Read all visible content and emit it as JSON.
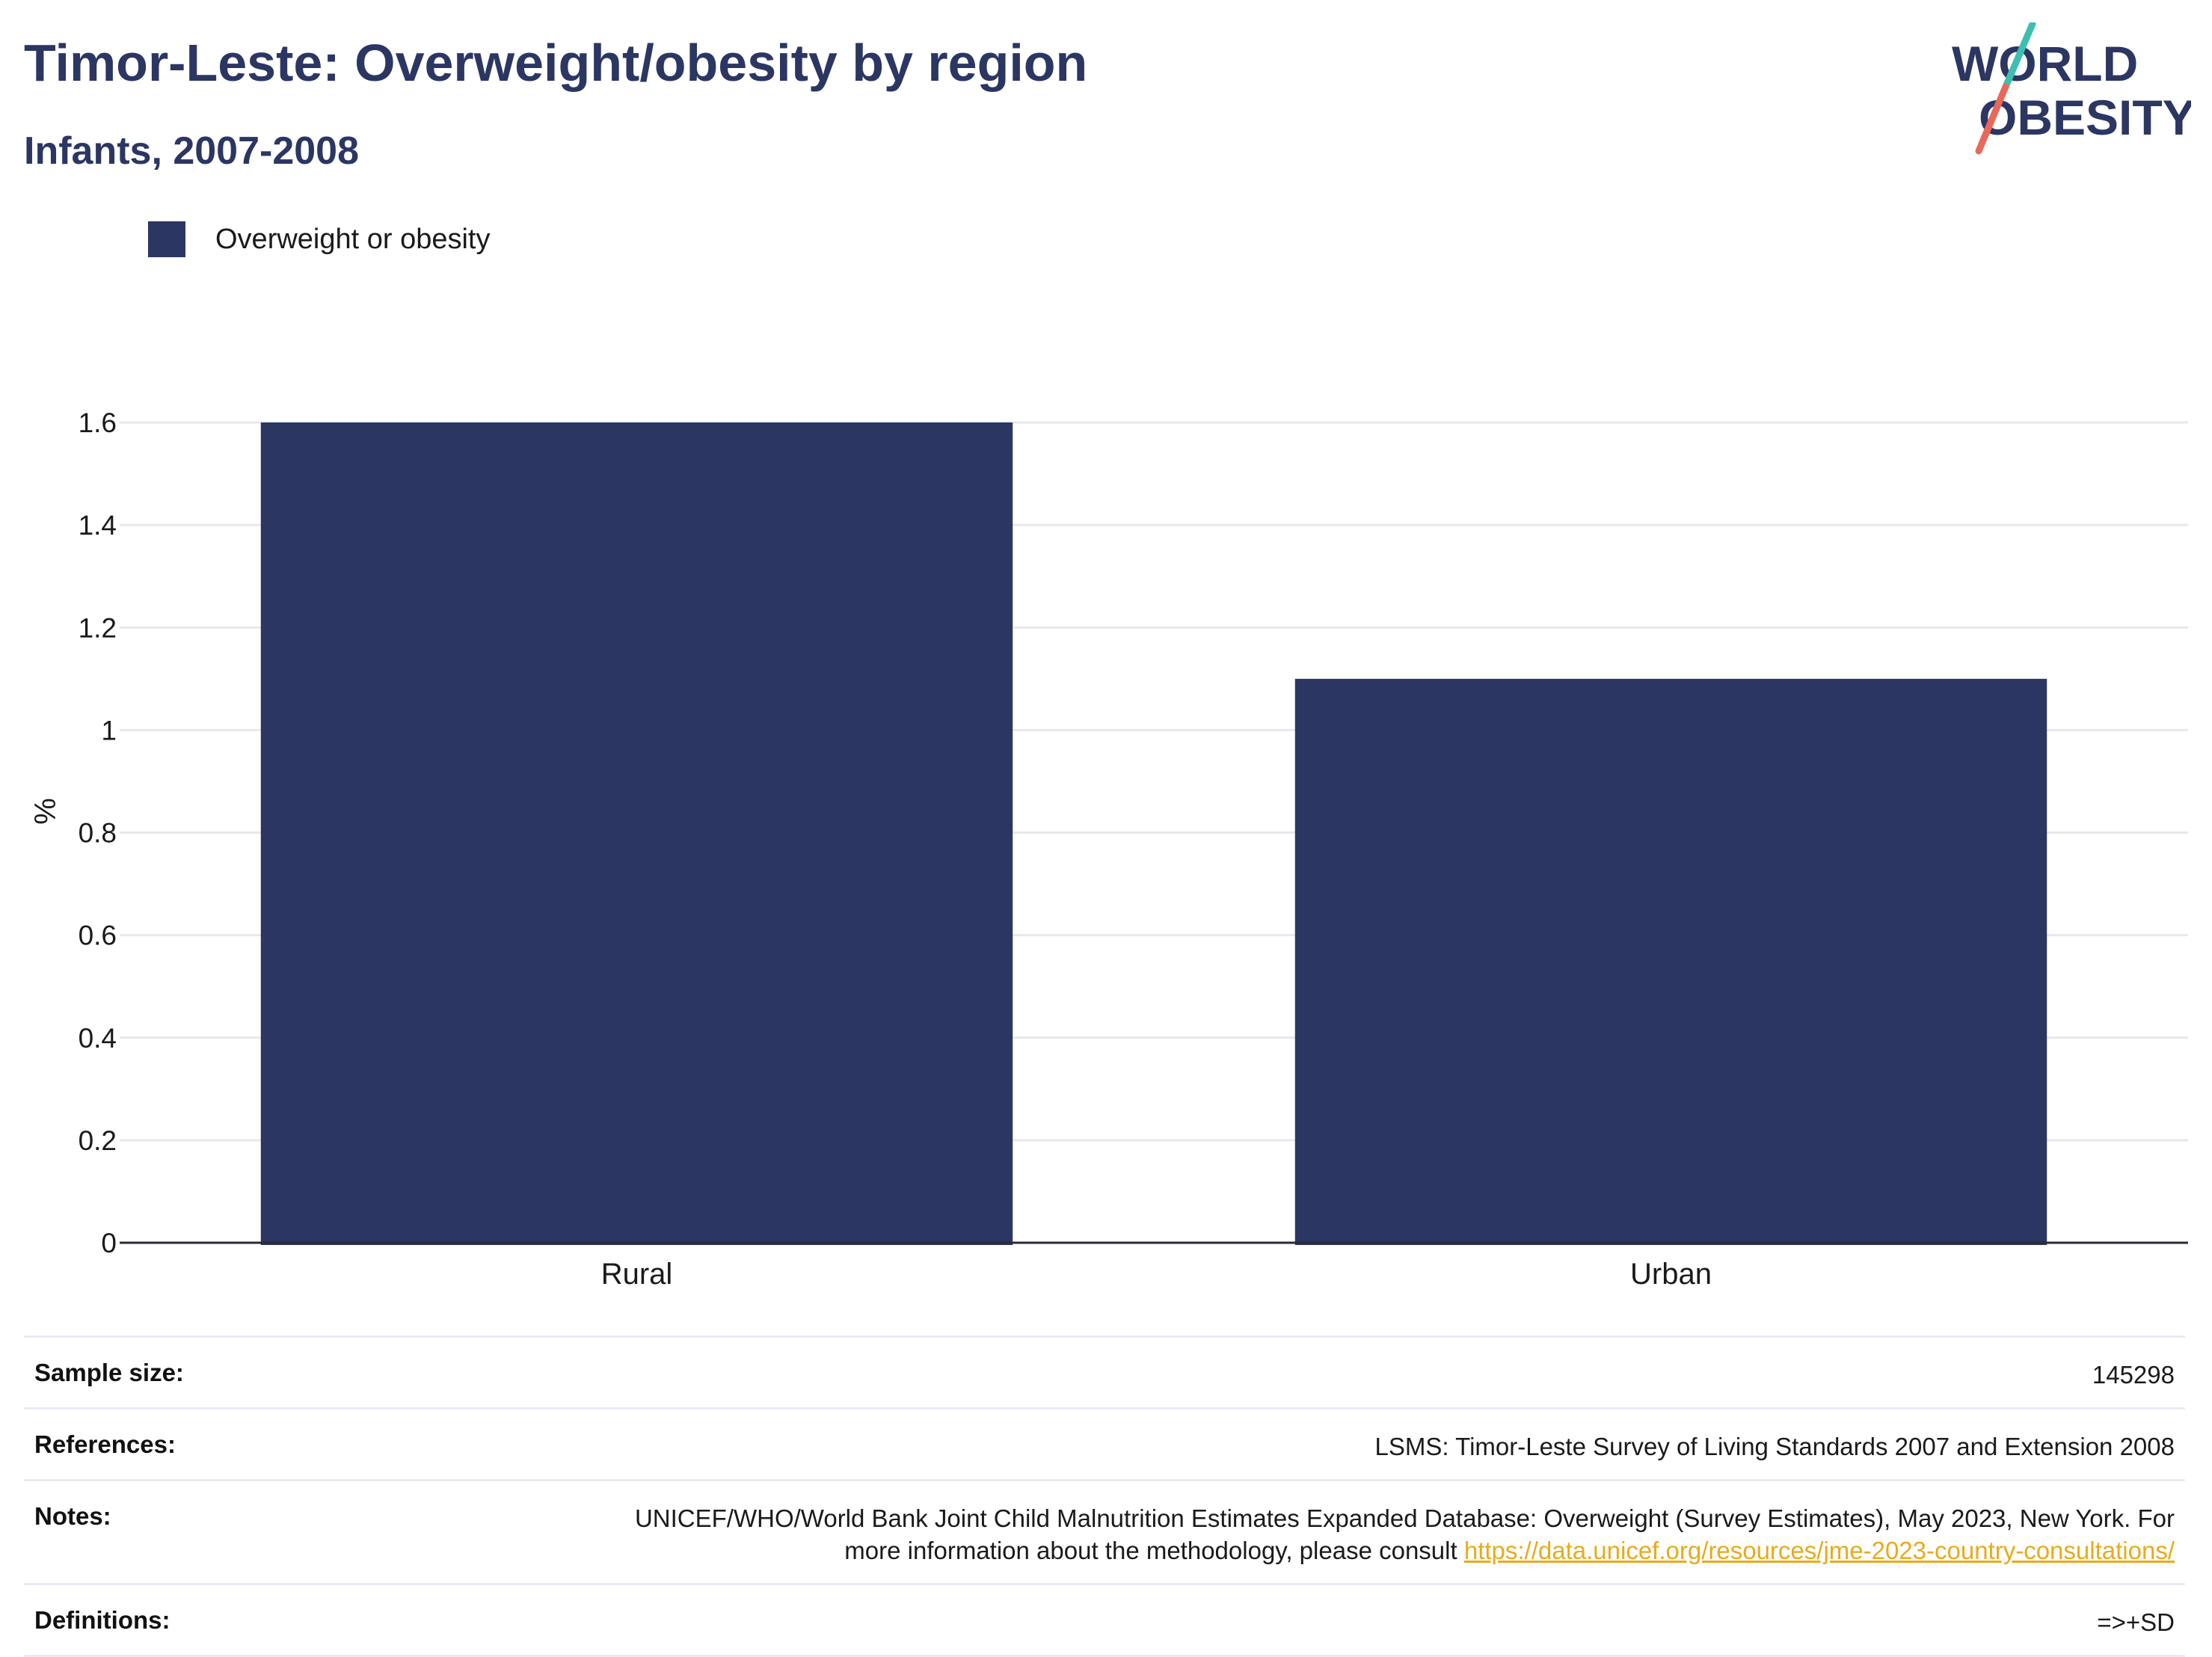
{
  "header": {
    "title": "Timor-Leste: Overweight/obesity by region",
    "subtitle": "Infants, 2007-2008"
  },
  "logo": {
    "line1": "WORLD",
    "line2": "OBESITY",
    "colors": {
      "text": "#2b3663",
      "slash_top": "#3dbfb0",
      "slash_bottom": "#e8685a"
    }
  },
  "legend": {
    "label": "Overweight or obesity",
    "color": "#2b3663"
  },
  "chart_data": {
    "type": "bar",
    "categories": [
      "Rural",
      "Urban"
    ],
    "series": [
      {
        "name": "Overweight or obesity",
        "values": [
          1.6,
          1.1
        ],
        "color": "#2b3663"
      }
    ],
    "ylabel": "%",
    "ylim": [
      0,
      1.6
    ],
    "yticks": [
      "0",
      "0.2",
      "0.4",
      "0.6",
      "0.8",
      "1",
      "1.2",
      "1.4",
      "1.6"
    ],
    "grid": true
  },
  "info": {
    "sample_size_label": "Sample size:",
    "sample_size_value": "145298",
    "references_label": "References:",
    "references_value": "LSMS: Timor-Leste Survey of Living Standards 2007 and Extension 2008",
    "notes_label": "Notes:",
    "notes_text": "UNICEF/WHO/World Bank Joint Child Malnutrition Estimates Expanded Database: Overweight (Survey Estimates), May 2023, New York. For more information about the methodology, please consult",
    "notes_link": "https://data.unicef.org/resources/jme-2023-country-consultations/",
    "definitions_label": "Definitions:",
    "definitions_value": "=>+SD"
  }
}
